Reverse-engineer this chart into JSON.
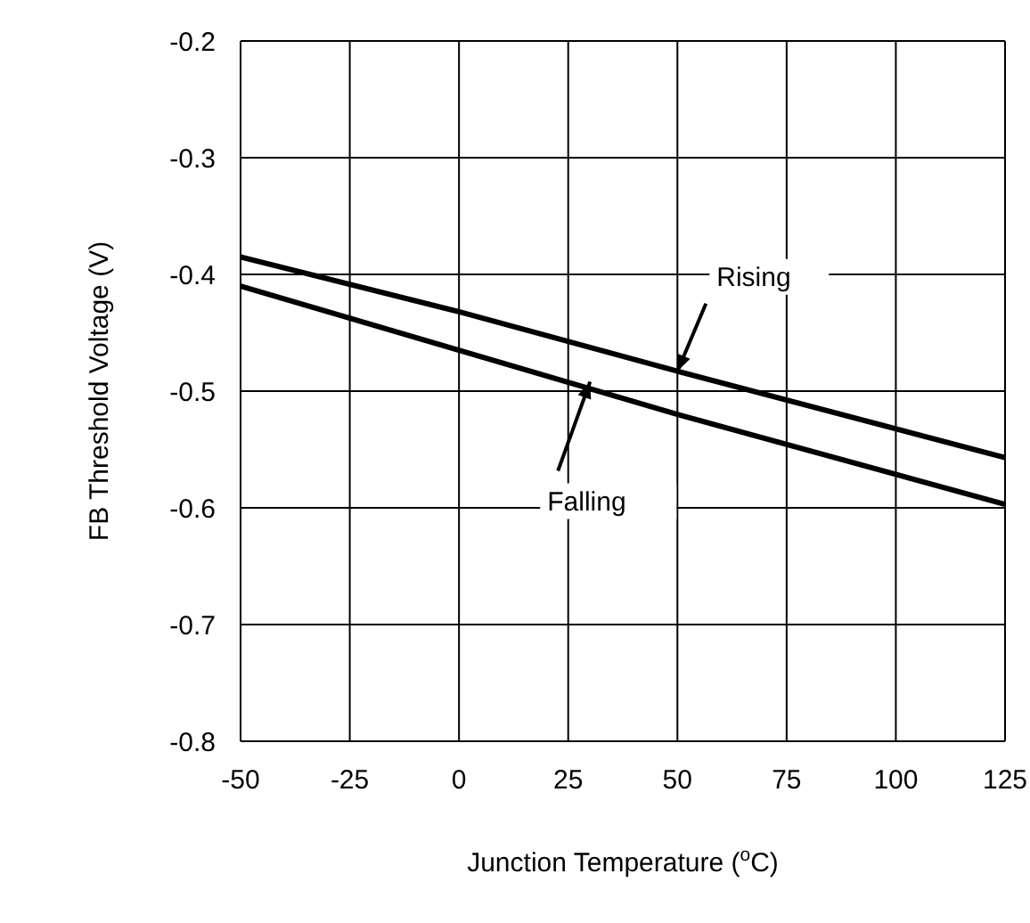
{
  "chart_data": {
    "type": "line",
    "xlabel": "Junction Temperature ($^{o}$C)",
    "ylabel": "FB Threshold Voltage (V)",
    "x": [
      -50,
      0,
      50,
      125
    ],
    "series": [
      {
        "color": "#000000",
        "values": [
          -0.385,
          -0.432,
          -0.483,
          -0.557
        ]
      },
      {
        "color": "#000000",
        "values": [
          -0.41,
          -0.465,
          -0.52,
          -0.597
        ]
      }
    ],
    "xlim": [
      -50,
      125
    ],
    "xticks": [
      -50,
      -25,
      0,
      25,
      50,
      75,
      100,
      125
    ],
    "ylim": [
      -0.8,
      -0.2
    ],
    "yticks": [
      -0.8,
      -0.7,
      -0.6,
      -0.5,
      -0.4,
      -0.3,
      -0.2
    ],
    "grid": true,
    "marker": "none",
    "line_style": "solid",
    "annotations": [
      {
        "text": "Rising",
        "x": 50,
        "y": -0.483
      },
      {
        "text": "Falling",
        "x": 30,
        "y": -0.492
      }
    ]
  }
}
